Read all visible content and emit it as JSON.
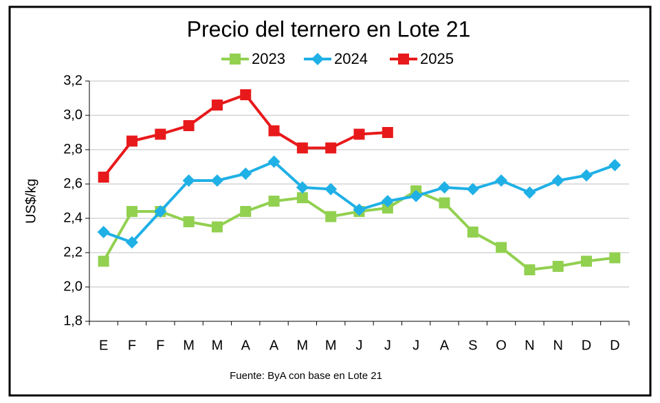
{
  "chart_data": {
    "type": "line",
    "title": "Precio del ternero en Lote 21",
    "y_label": "US$/kg",
    "source": "Fuente: ByA con base en Lote 21",
    "categories": [
      "E",
      "F",
      "F",
      "M",
      "M",
      "A",
      "A",
      "M",
      "M",
      "J",
      "J",
      "J",
      "A",
      "S",
      "O",
      "N",
      "N",
      "D",
      "D"
    ],
    "series": [
      {
        "name": "2023",
        "color": "#92d050",
        "marker": "square",
        "values": [
          2.15,
          2.44,
          2.44,
          2.38,
          2.35,
          2.44,
          2.5,
          2.52,
          2.41,
          2.44,
          2.46,
          2.56,
          2.49,
          2.32,
          2.23,
          2.1,
          2.12,
          2.15,
          2.17
        ]
      },
      {
        "name": "2024",
        "color": "#1fb0e6",
        "marker": "diamond",
        "values": [
          2.32,
          2.26,
          2.44,
          2.62,
          2.62,
          2.66,
          2.73,
          2.58,
          2.57,
          2.45,
          2.5,
          2.53,
          2.58,
          2.57,
          2.62,
          2.55,
          2.62,
          2.65,
          2.71
        ]
      },
      {
        "name": "2025",
        "color": "#e8191b",
        "marker": "square",
        "values": [
          2.64,
          2.85,
          2.89,
          2.94,
          3.06,
          3.12,
          2.91,
          2.81,
          2.81,
          2.89,
          2.9,
          null,
          null,
          null,
          null,
          null,
          null,
          null,
          null
        ]
      }
    ],
    "ylim": [
      1.8,
      3.2
    ],
    "yticks": [
      {
        "value": 1.8,
        "label": "1,8"
      },
      {
        "value": 2.0,
        "label": "2,0"
      },
      {
        "value": 2.2,
        "label": "2,2"
      },
      {
        "value": 2.4,
        "label": "2,4"
      },
      {
        "value": 2.6,
        "label": "2,6"
      },
      {
        "value": 2.8,
        "label": "2,8"
      },
      {
        "value": 3.0,
        "label": "3,0"
      },
      {
        "value": 3.2,
        "label": "3,2"
      }
    ],
    "grid": true
  }
}
